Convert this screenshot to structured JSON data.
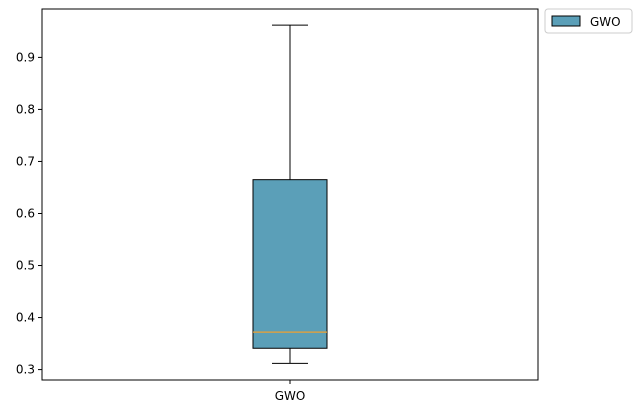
{
  "chart_data": {
    "type": "box",
    "title": "",
    "xlabel": "",
    "ylabel": "",
    "categories": [
      "GWO"
    ],
    "series": [
      {
        "name": "GWO",
        "color": "#5b9fb8",
        "median_color": "#f0a030",
        "whisker_low": 0.312,
        "q1": 0.341,
        "median": 0.372,
        "q3": 0.665,
        "whisker_high": 0.962
      }
    ],
    "ylim": [
      0.28,
      0.993
    ],
    "yticks": [
      0.3,
      0.4,
      0.5,
      0.6,
      0.7,
      0.8,
      0.9
    ],
    "ytick_labels": [
      "0.3",
      "0.4",
      "0.5",
      "0.6",
      "0.7",
      "0.8",
      "0.9"
    ],
    "grid": false,
    "legend": {
      "placement": "outside-top-right",
      "entries": [
        "GWO"
      ]
    }
  }
}
